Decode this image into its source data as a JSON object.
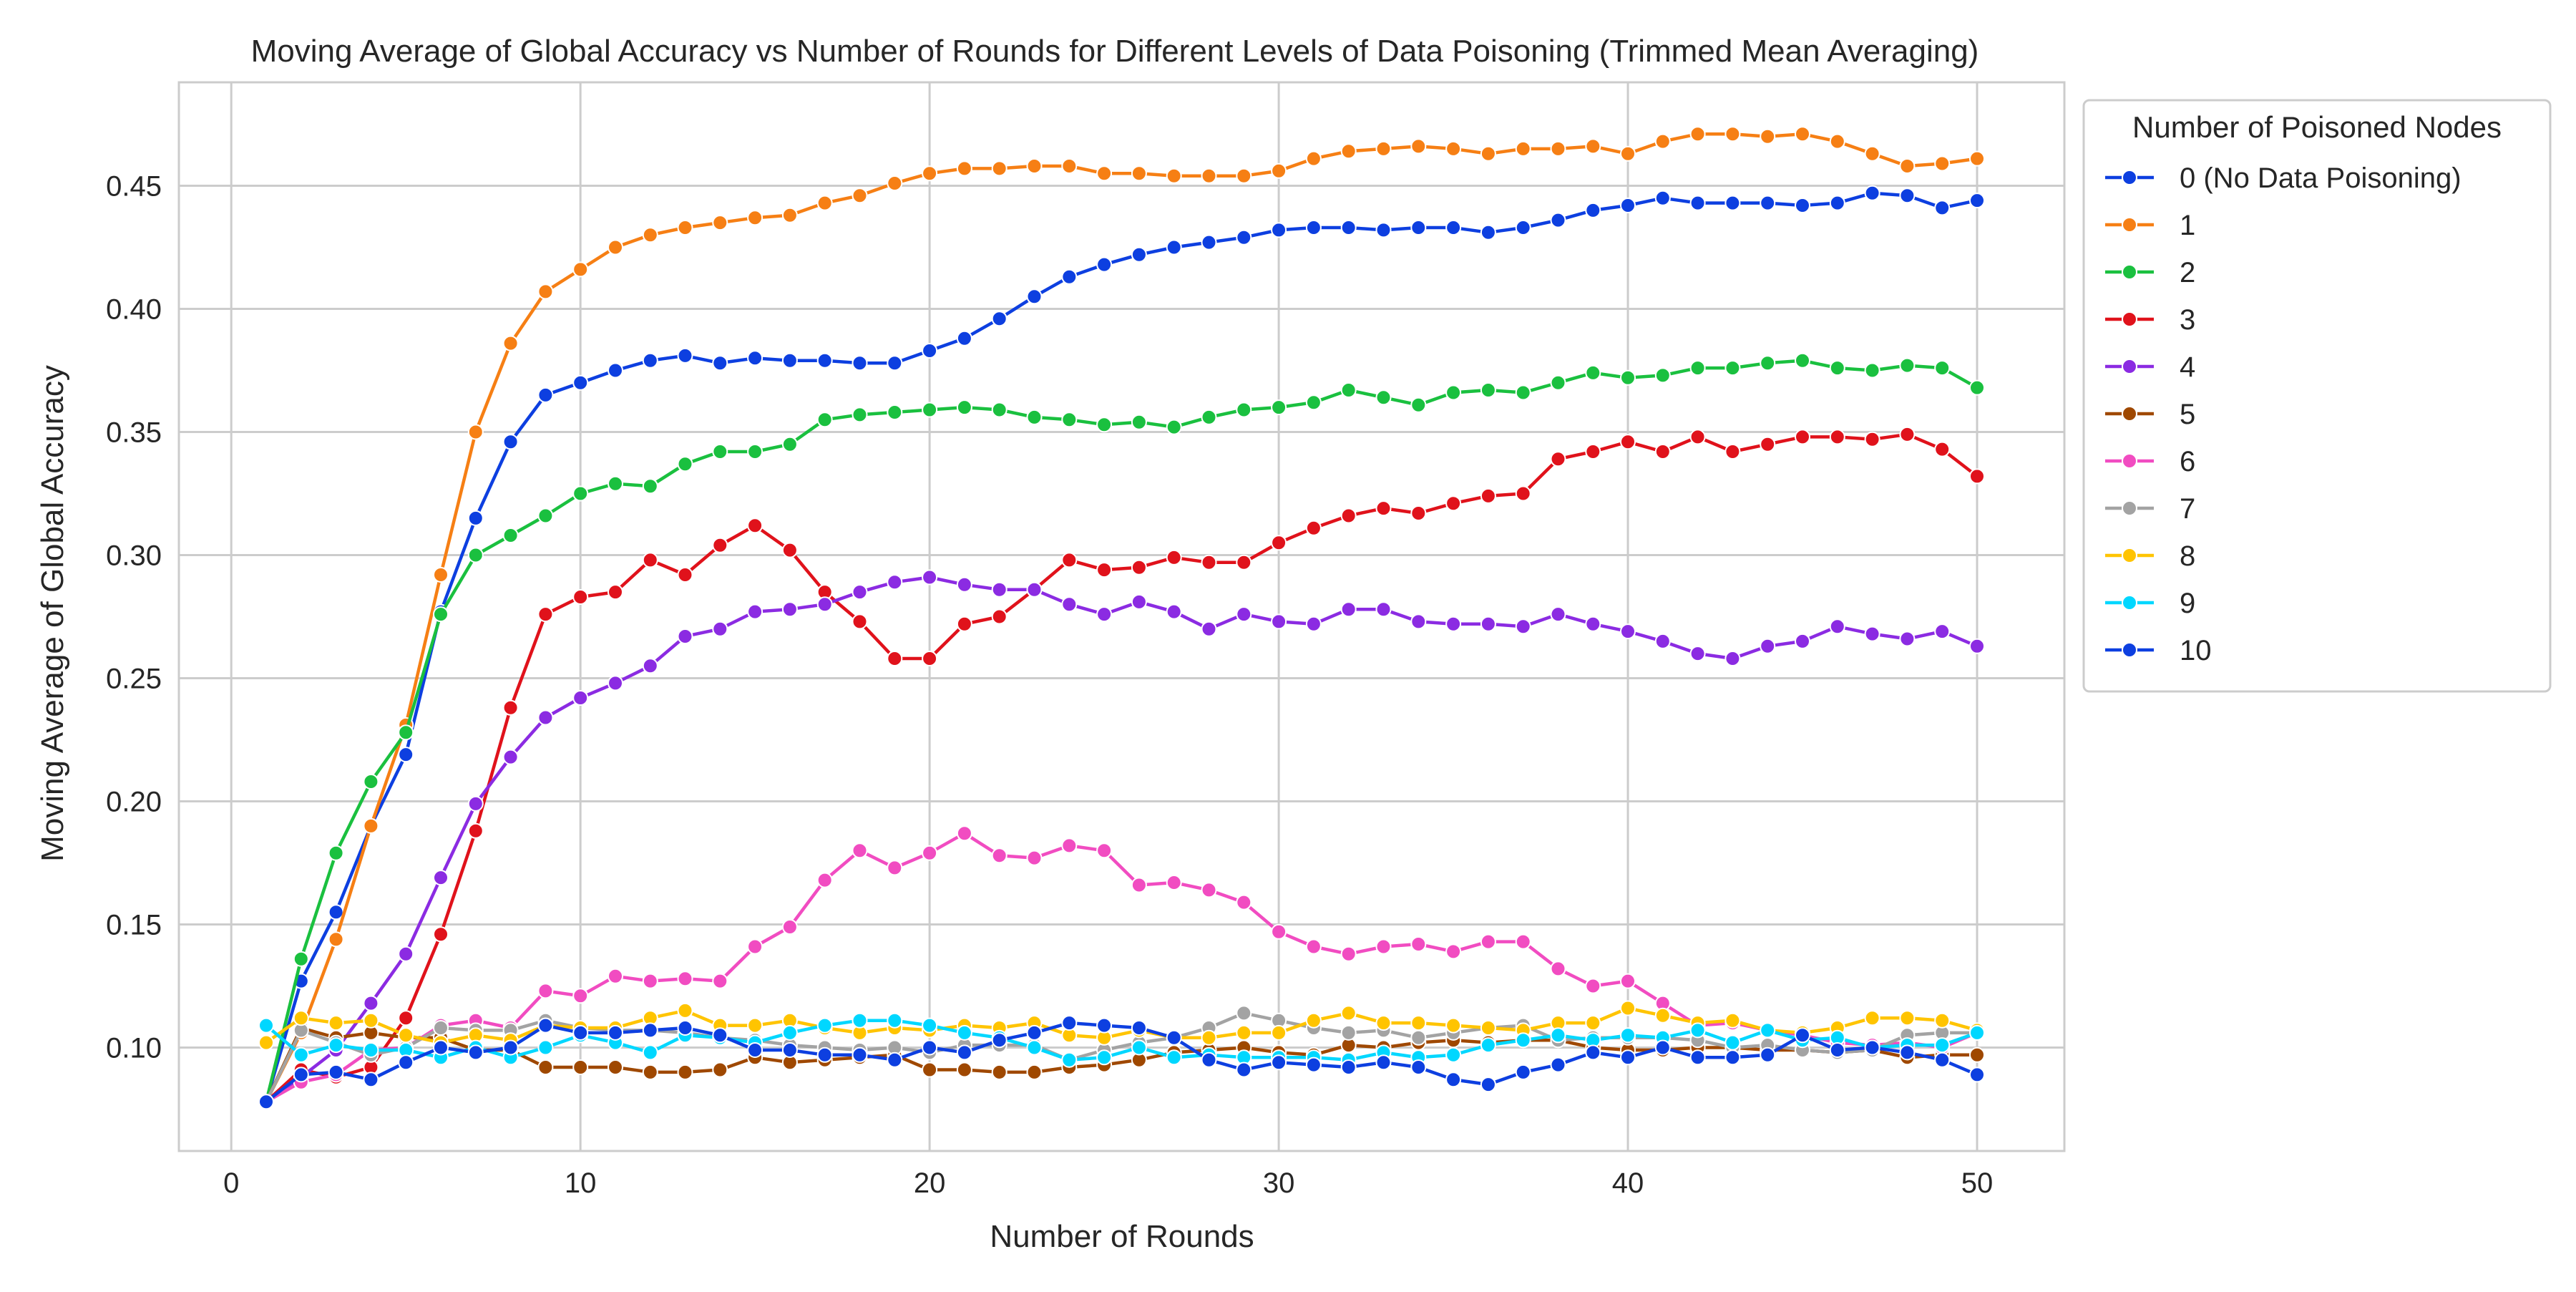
{
  "chart_data": {
    "type": "line",
    "title": "Moving Average of Global Accuracy vs Number of Rounds for Different Levels of Data Poisoning (Trimmed Mean Averaging)",
    "xlabel": "Number of Rounds",
    "ylabel": "Moving Average of Global Accuracy",
    "xlim": [
      -1.5,
      52.5
    ],
    "ylim": [
      0.058,
      0.492
    ],
    "xticks": [
      0,
      10,
      20,
      30,
      40,
      50
    ],
    "xtick_labels": [
      "0",
      "10",
      "20",
      "30",
      "40",
      "50"
    ],
    "yticks": [
      0.1,
      0.15,
      0.2,
      0.25,
      0.3,
      0.35,
      0.4,
      0.45
    ],
    "ytick_labels": [
      "0.10",
      "0.15",
      "0.20",
      "0.25",
      "0.30",
      "0.35",
      "0.40",
      "0.45"
    ],
    "grid": true,
    "markers": true,
    "legend": {
      "title": "Number of Poisoned Nodes",
      "placement": "outside-right-top"
    },
    "x": [
      1,
      2,
      3,
      4,
      5,
      6,
      7,
      8,
      9,
      10,
      11,
      12,
      13,
      14,
      15,
      16,
      17,
      18,
      19,
      20,
      21,
      22,
      23,
      24,
      25,
      26,
      27,
      28,
      29,
      30,
      31,
      32,
      33,
      34,
      35,
      36,
      37,
      38,
      39,
      40,
      41,
      42,
      43,
      44,
      45,
      46,
      47,
      48,
      49,
      50
    ],
    "series": [
      {
        "name": "0 (No Data Poisoning)",
        "color": "#0d3fe0",
        "values": [
          0.078,
          0.127,
          0.155,
          0.19,
          0.219,
          0.277,
          0.315,
          0.346,
          0.365,
          0.37,
          0.375,
          0.379,
          0.381,
          0.378,
          0.38,
          0.379,
          0.379,
          0.378,
          0.378,
          0.383,
          0.388,
          0.396,
          0.405,
          0.413,
          0.418,
          0.422,
          0.425,
          0.427,
          0.429,
          0.432,
          0.433,
          0.433,
          0.432,
          0.433,
          0.433,
          0.431,
          0.433,
          0.436,
          0.44,
          0.442,
          0.445,
          0.443,
          0.443,
          0.443,
          0.442,
          0.443,
          0.447,
          0.446,
          0.441,
          0.444
        ]
      },
      {
        "name": "1",
        "color": "#f67f14",
        "values": [
          0.078,
          0.106,
          0.144,
          0.19,
          0.231,
          0.292,
          0.35,
          0.386,
          0.407,
          0.416,
          0.425,
          0.43,
          0.433,
          0.435,
          0.437,
          0.438,
          0.443,
          0.446,
          0.451,
          0.455,
          0.457,
          0.457,
          0.458,
          0.458,
          0.455,
          0.455,
          0.454,
          0.454,
          0.454,
          0.456,
          0.461,
          0.464,
          0.465,
          0.466,
          0.465,
          0.463,
          0.465,
          0.465,
          0.466,
          0.463,
          0.468,
          0.471,
          0.471,
          0.47,
          0.471,
          0.468,
          0.463,
          0.458,
          0.459,
          0.461
        ]
      },
      {
        "name": "2",
        "color": "#1ac03f",
        "values": [
          0.078,
          0.136,
          0.179,
          0.208,
          0.228,
          0.276,
          0.3,
          0.308,
          0.316,
          0.325,
          0.329,
          0.328,
          0.337,
          0.342,
          0.342,
          0.345,
          0.355,
          0.357,
          0.358,
          0.359,
          0.36,
          0.359,
          0.356,
          0.355,
          0.353,
          0.354,
          0.352,
          0.356,
          0.359,
          0.36,
          0.362,
          0.367,
          0.364,
          0.361,
          0.366,
          0.367,
          0.366,
          0.37,
          0.374,
          0.372,
          0.373,
          0.376,
          0.376,
          0.378,
          0.379,
          0.376,
          0.375,
          0.377,
          0.376,
          0.368
        ]
      },
      {
        "name": "3",
        "color": "#e0121b",
        "values": [
          0.078,
          0.091,
          0.088,
          0.092,
          0.112,
          0.146,
          0.188,
          0.238,
          0.276,
          0.283,
          0.285,
          0.298,
          0.292,
          0.304,
          0.312,
          0.302,
          0.285,
          0.273,
          0.258,
          0.258,
          0.272,
          0.275,
          0.286,
          0.298,
          0.294,
          0.295,
          0.299,
          0.297,
          0.297,
          0.305,
          0.311,
          0.316,
          0.319,
          0.317,
          0.321,
          0.324,
          0.325,
          0.339,
          0.342,
          0.346,
          0.342,
          0.348,
          0.342,
          0.345,
          0.348,
          0.348,
          0.347,
          0.349,
          0.343,
          0.332
        ]
      },
      {
        "name": "4",
        "color": "#8b2be2",
        "values": [
          0.078,
          0.088,
          0.099,
          0.118,
          0.138,
          0.169,
          0.199,
          0.218,
          0.234,
          0.242,
          0.248,
          0.255,
          0.267,
          0.27,
          0.277,
          0.278,
          0.28,
          0.285,
          0.289,
          0.291,
          0.288,
          0.286,
          0.286,
          0.28,
          0.276,
          0.281,
          0.277,
          0.27,
          0.276,
          0.273,
          0.272,
          0.278,
          0.278,
          0.273,
          0.272,
          0.272,
          0.271,
          0.276,
          0.272,
          0.269,
          0.265,
          0.26,
          0.258,
          0.263,
          0.265,
          0.271,
          0.268,
          0.266,
          0.269,
          0.263
        ]
      },
      {
        "name": "5",
        "color": "#9f4800",
        "values": [
          0.078,
          0.108,
          0.104,
          0.106,
          0.104,
          0.104,
          0.099,
          0.099,
          0.092,
          0.092,
          0.092,
          0.09,
          0.09,
          0.091,
          0.096,
          0.094,
          0.095,
          0.096,
          0.097,
          0.091,
          0.091,
          0.09,
          0.09,
          0.092,
          0.093,
          0.095,
          0.098,
          0.099,
          0.1,
          0.098,
          0.097,
          0.101,
          0.1,
          0.102,
          0.103,
          0.102,
          0.103,
          0.103,
          0.1,
          0.099,
          0.099,
          0.1,
          0.1,
          0.099,
          0.099,
          0.098,
          0.099,
          0.096,
          0.097,
          0.097
        ]
      },
      {
        "name": "6",
        "color": "#f14cc1",
        "values": [
          0.078,
          0.086,
          0.089,
          0.099,
          0.1,
          0.109,
          0.111,
          0.108,
          0.123,
          0.121,
          0.129,
          0.127,
          0.128,
          0.127,
          0.141,
          0.149,
          0.168,
          0.18,
          0.173,
          0.179,
          0.187,
          0.178,
          0.177,
          0.182,
          0.18,
          0.166,
          0.167,
          0.164,
          0.159,
          0.147,
          0.141,
          0.138,
          0.141,
          0.142,
          0.139,
          0.143,
          0.143,
          0.132,
          0.125,
          0.127,
          0.118,
          0.109,
          0.11,
          0.107,
          0.105,
          0.102,
          0.101,
          0.102,
          0.1,
          0.106
        ]
      },
      {
        "name": "7",
        "color": "#a3a3a3",
        "values": [
          0.078,
          0.107,
          0.102,
          0.097,
          0.1,
          0.108,
          0.107,
          0.107,
          0.111,
          0.108,
          0.107,
          0.107,
          0.106,
          0.104,
          0.103,
          0.101,
          0.1,
          0.099,
          0.1,
          0.098,
          0.101,
          0.101,
          0.101,
          0.095,
          0.099,
          0.102,
          0.104,
          0.108,
          0.114,
          0.111,
          0.108,
          0.106,
          0.107,
          0.104,
          0.106,
          0.108,
          0.109,
          0.103,
          0.104,
          0.104,
          0.104,
          0.103,
          0.1,
          0.101,
          0.099,
          0.098,
          0.099,
          0.105,
          0.106,
          0.106
        ]
      },
      {
        "name": "8",
        "color": "#ffc400",
        "values": [
          0.102,
          0.112,
          0.11,
          0.111,
          0.105,
          0.102,
          0.105,
          0.103,
          0.109,
          0.108,
          0.108,
          0.112,
          0.115,
          0.109,
          0.109,
          0.111,
          0.108,
          0.106,
          0.108,
          0.107,
          0.109,
          0.108,
          0.11,
          0.105,
          0.104,
          0.107,
          0.104,
          0.104,
          0.106,
          0.106,
          0.111,
          0.114,
          0.11,
          0.11,
          0.109,
          0.108,
          0.107,
          0.11,
          0.11,
          0.116,
          0.113,
          0.11,
          0.111,
          0.107,
          0.106,
          0.108,
          0.112,
          0.112,
          0.111,
          0.107
        ]
      },
      {
        "name": "9",
        "color": "#00d7ff",
        "values": [
          0.109,
          0.097,
          0.101,
          0.099,
          0.099,
          0.096,
          0.1,
          0.096,
          0.1,
          0.105,
          0.102,
          0.098,
          0.105,
          0.104,
          0.102,
          0.106,
          0.109,
          0.111,
          0.111,
          0.109,
          0.106,
          0.104,
          0.1,
          0.095,
          0.096,
          0.1,
          0.096,
          0.097,
          0.096,
          0.096,
          0.096,
          0.095,
          0.098,
          0.096,
          0.097,
          0.101,
          0.103,
          0.105,
          0.103,
          0.105,
          0.104,
          0.107,
          0.102,
          0.107,
          0.103,
          0.104,
          0.1,
          0.101,
          0.101,
          0.106
        ]
      },
      {
        "name": "10",
        "color": "#0d3fe0",
        "values": [
          0.078,
          0.089,
          0.09,
          0.087,
          0.094,
          0.1,
          0.098,
          0.1,
          0.109,
          0.106,
          0.106,
          0.107,
          0.108,
          0.105,
          0.099,
          0.099,
          0.097,
          0.097,
          0.095,
          0.1,
          0.098,
          0.103,
          0.106,
          0.11,
          0.109,
          0.108,
          0.104,
          0.095,
          0.091,
          0.094,
          0.093,
          0.092,
          0.094,
          0.092,
          0.087,
          0.085,
          0.09,
          0.093,
          0.098,
          0.096,
          0.1,
          0.096,
          0.096,
          0.097,
          0.105,
          0.099,
          0.1,
          0.098,
          0.095,
          0.089
        ]
      }
    ]
  }
}
